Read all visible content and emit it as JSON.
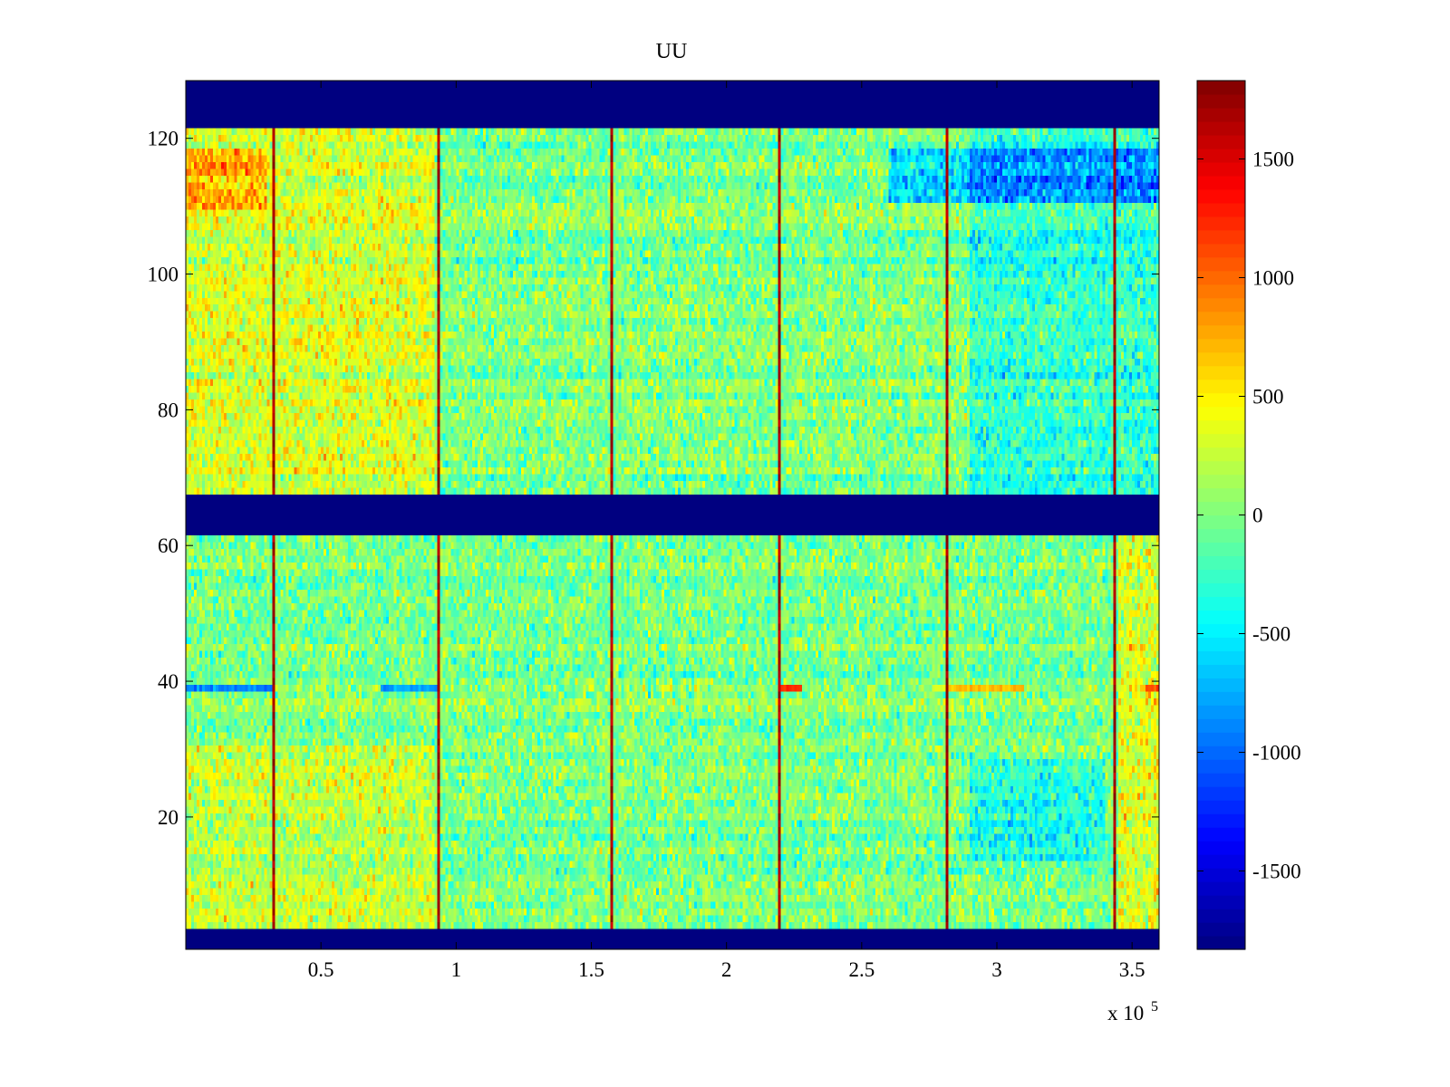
{
  "chart_data": {
    "type": "heatmap",
    "title": "UU",
    "xlabel": "",
    "ylabel": "",
    "x_multiplier_label": "x 10",
    "x_multiplier_exponent": "5",
    "xlim": [
      0,
      3.6
    ],
    "ylim": [
      0.5,
      128.5
    ],
    "x_ticks": [
      0.5,
      1,
      1.5,
      2,
      2.5,
      3,
      3.5
    ],
    "x_tick_labels": [
      "0.5",
      "1",
      "1.5",
      "2",
      "2.5",
      "3",
      "3.5"
    ],
    "y_ticks": [
      20,
      40,
      60,
      80,
      100,
      120
    ],
    "y_tick_labels": [
      "20",
      "40",
      "60",
      "80",
      "100",
      "120"
    ],
    "colormap": "jet",
    "clim": [
      -1830,
      1830
    ],
    "colorbar_ticks": [
      1500,
      1000,
      500,
      0,
      -500,
      -1000,
      -1500
    ],
    "colorbar_tick_labels": [
      "1500",
      "1000",
      "500",
      "0",
      "-500",
      "-1000",
      "-1500"
    ],
    "baseline_value": 0,
    "noise_amplitude": 700,
    "masked_row_ranges": [
      [
        0.5,
        3.5
      ],
      [
        61.5,
        67.5
      ],
      [
        121.5,
        128.5
      ]
    ],
    "masked_value": -1830,
    "spike_columns_x": [
      0.32,
      0.94,
      1.57,
      2.19,
      2.81,
      3.43
    ],
    "spike_value": 1830,
    "regional_offsets": [
      {
        "x_range": [
          0.0,
          0.92
        ],
        "y_range": [
          68,
          121
        ],
        "offset": 320
      },
      {
        "x_range": [
          2.9,
          3.6
        ],
        "y_range": [
          68,
          121
        ],
        "offset": -280
      },
      {
        "x_range": [
          0.0,
          0.3
        ],
        "y_range": [
          110,
          118
        ],
        "offset": 450
      },
      {
        "x_range": [
          2.6,
          3.6
        ],
        "y_range": [
          111,
          118
        ],
        "offset": -550
      },
      {
        "x_range": [
          3.45,
          3.6
        ],
        "y_range": [
          3,
          61
        ],
        "offset": 350
      },
      {
        "x_range": [
          0.0,
          0.92
        ],
        "y_range": [
          4,
          30
        ],
        "offset": 250
      },
      {
        "x_range": [
          2.9,
          3.4
        ],
        "y_range": [
          14,
          28
        ],
        "offset": -350
      }
    ],
    "row_bands": [
      {
        "row": 39,
        "x_range": [
          0.0,
          0.33
        ],
        "value": -900
      },
      {
        "row": 39,
        "x_range": [
          0.72,
          0.94
        ],
        "value": -800
      },
      {
        "row": 39,
        "x_range": [
          2.2,
          2.28
        ],
        "value": 1200
      },
      {
        "row": 39,
        "x_range": [
          2.82,
          3.1
        ],
        "value": 700
      },
      {
        "row": 39,
        "x_range": [
          3.55,
          3.6
        ],
        "value": 1100
      }
    ]
  }
}
